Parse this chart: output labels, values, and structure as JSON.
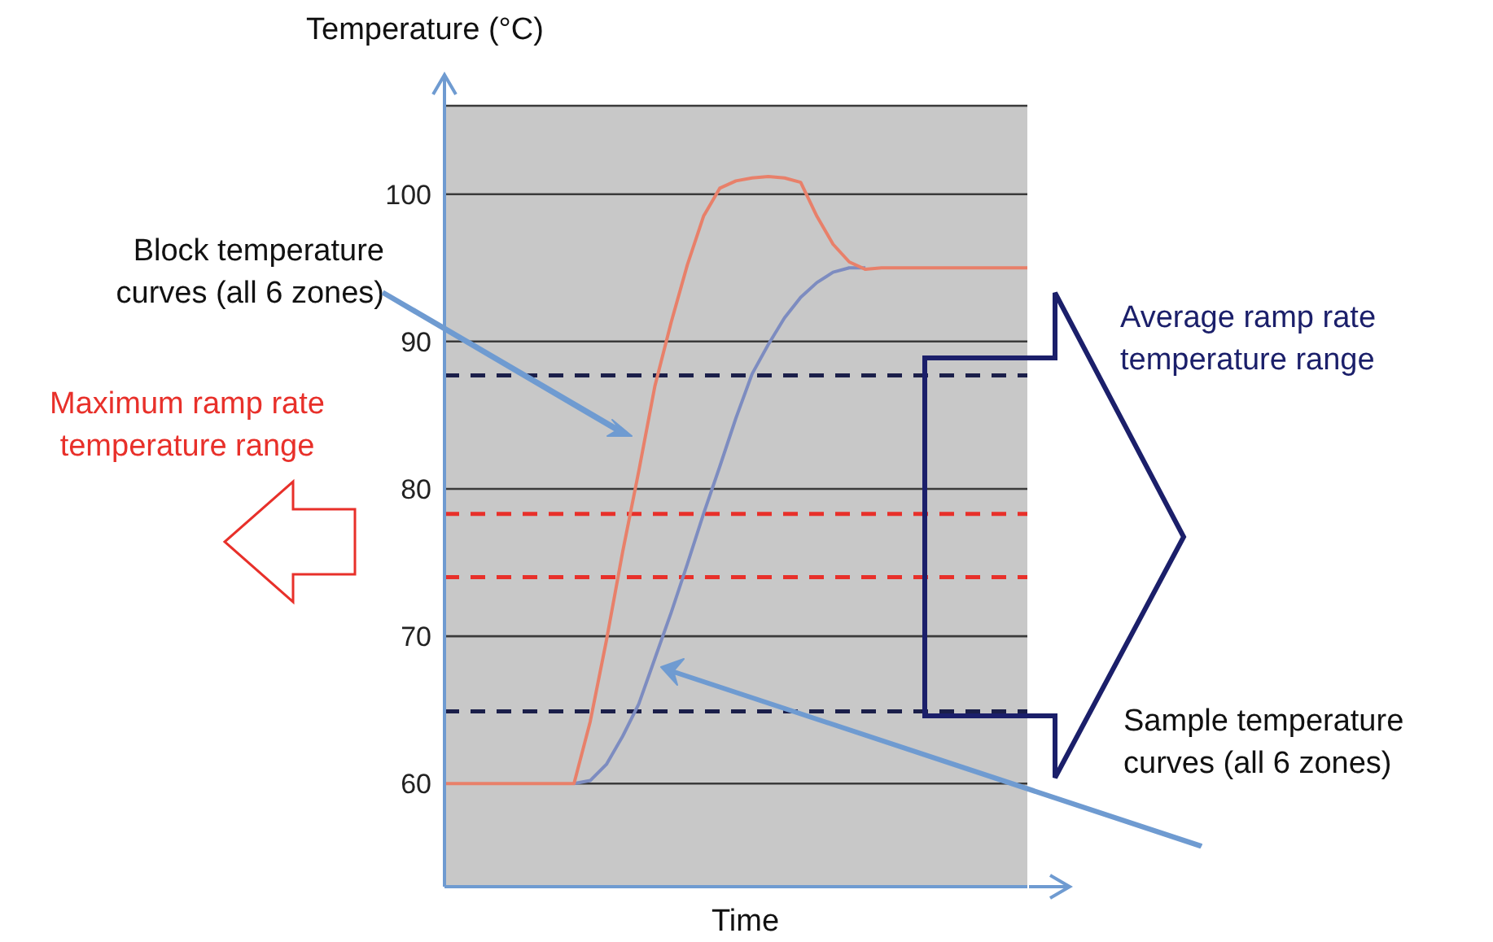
{
  "chart_data": {
    "type": "line",
    "ylabel": "Temperature (°C)",
    "xlabel": "Time",
    "categories": [
      null,
      null,
      null,
      null,
      null,
      null,
      null,
      null,
      null,
      null,
      null,
      null,
      null,
      null,
      null,
      null,
      null,
      null,
      null,
      null,
      null,
      null,
      null,
      null,
      null,
      null,
      null,
      null,
      null,
      null,
      null,
      null,
      null,
      null,
      null,
      null,
      null
    ],
    "series": [
      {
        "color": "#e8806a",
        "values": [
          60,
          60,
          60,
          60,
          60,
          60,
          60,
          60,
          60,
          64.2,
          69.7,
          75.7,
          81.2,
          87,
          91.3,
          95.2,
          98.5,
          100.4,
          100.9,
          101.1,
          101.2,
          101.1,
          100.8,
          98.5,
          96.6,
          95.4,
          94.9,
          95,
          95,
          95,
          95,
          95,
          95,
          95,
          95,
          95,
          95
        ]
      },
      {
        "color": "#7d8cc0",
        "values": [
          null,
          null,
          null,
          null,
          null,
          null,
          null,
          null,
          60,
          60.2,
          61.3,
          63.2,
          65.4,
          68.5,
          71.6,
          74.9,
          78.3,
          81.5,
          84.8,
          87.8,
          89.8,
          91.6,
          93,
          94,
          94.7,
          95,
          95,
          null,
          null,
          null,
          null,
          null,
          null,
          null,
          null,
          null,
          null
        ]
      }
    ],
    "ylim": [
      53,
      106
    ],
    "yticks": [
      60,
      70,
      80,
      90,
      100
    ],
    "grid": "y",
    "marker": "none",
    "line_style": "solid",
    "legend": false,
    "ref_lines": [
      {
        "axis": "y",
        "value": 87.7,
        "color": "#1b1f4a",
        "line_style": "dashed"
      },
      {
        "axis": "y",
        "value": 64.9,
        "color": "#1b1f4a",
        "line_style": "dashed"
      },
      {
        "axis": "y",
        "value": 78.3,
        "color": "#e8302a",
        "line_style": "dashed"
      },
      {
        "axis": "y",
        "value": 74,
        "color": "#e8302a",
        "line_style": "dashed"
      }
    ],
    "annotations": [
      "Block temperature curves (all 6 zones)",
      "Maximum ramp rate temperature range",
      "Average ramp rate temperature range",
      "Sample temperature curves (all 6 zones)"
    ]
  }
}
